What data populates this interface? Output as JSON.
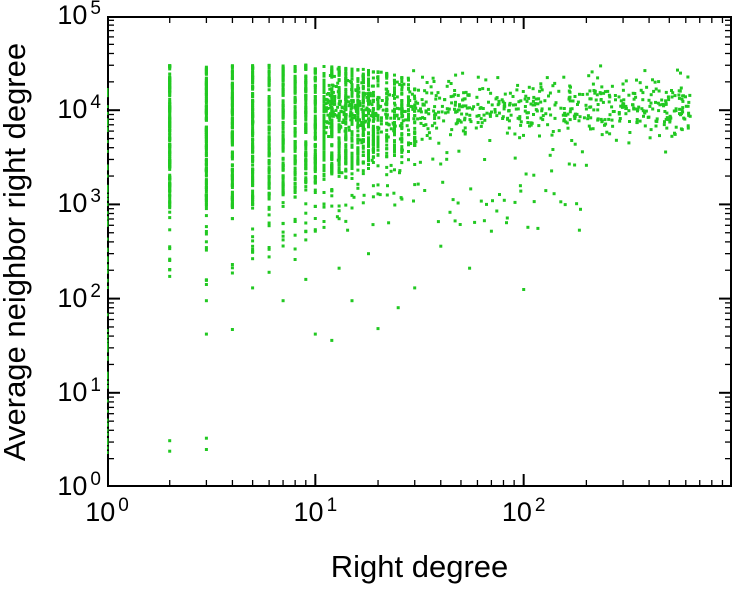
{
  "chart_data": {
    "type": "scatter",
    "title": "",
    "xlabel": "Right degree",
    "ylabel": "Average neighbor right degree",
    "xscale": "log",
    "yscale": "log",
    "xlim": [
      1,
      1000
    ],
    "ylim": [
      1,
      100000
    ],
    "grid": false,
    "legend": "none",
    "axis_color": "#000000",
    "marker_color": "#21c821",
    "marker_size": 3,
    "x_ticks": [
      {
        "value": 1,
        "base": "10",
        "exp": "0"
      },
      {
        "value": 10,
        "base": "10",
        "exp": "1"
      },
      {
        "value": 100,
        "base": "10",
        "exp": "2"
      }
    ],
    "y_ticks": [
      {
        "value": 1,
        "base": "10",
        "exp": "0"
      },
      {
        "value": 10,
        "base": "10",
        "exp": "1"
      },
      {
        "value": 100,
        "base": "10",
        "exp": "2"
      },
      {
        "value": 1000,
        "base": "10",
        "exp": "3"
      },
      {
        "value": 10000,
        "base": "10",
        "exp": "4"
      },
      {
        "value": 100000,
        "base": "10",
        "exp": "5"
      }
    ],
    "point_cloud": {
      "seed": 42,
      "left_axis_column": {
        "x": 1,
        "count": 70,
        "logy": [
          0.35,
          4.45
        ]
      },
      "stripes": {
        "fields": [
          "x",
          "solid_logy_min",
          "solid_logy_max",
          "solid_count",
          "tail_logy_min",
          "tail_count"
        ],
        "rows": [
          [
            2,
            2.95,
            4.48,
            150,
            2.2,
            10
          ],
          [
            3,
            2.95,
            4.48,
            140,
            2.1,
            10
          ],
          [
            4,
            3.0,
            4.48,
            130,
            2.2,
            9
          ],
          [
            5,
            3.0,
            4.48,
            120,
            2.3,
            8
          ],
          [
            6,
            3.05,
            4.48,
            112,
            2.4,
            8
          ],
          [
            7,
            3.1,
            4.48,
            105,
            2.5,
            7
          ],
          [
            8,
            3.1,
            4.48,
            100,
            2.5,
            7
          ],
          [
            9,
            3.15,
            4.48,
            95,
            2.6,
            6
          ],
          [
            10,
            3.2,
            4.47,
            90,
            2.6,
            6
          ],
          [
            11,
            3.25,
            4.47,
            85,
            2.7,
            5
          ],
          [
            12,
            3.3,
            4.46,
            80,
            2.7,
            5
          ],
          [
            13,
            3.3,
            4.46,
            75,
            2.8,
            4
          ],
          [
            14,
            3.35,
            4.45,
            70,
            2.8,
            4
          ],
          [
            15,
            3.35,
            4.45,
            66,
            2.9,
            4
          ],
          [
            16,
            3.4,
            4.44,
            62,
            2.9,
            3
          ],
          [
            17,
            3.4,
            4.44,
            58,
            3.0,
            3
          ],
          [
            18,
            3.45,
            4.43,
            54,
            3.0,
            3
          ],
          [
            19,
            3.45,
            4.43,
            50,
            3.0,
            3
          ],
          [
            20,
            3.5,
            4.42,
            46,
            3.1,
            3
          ],
          [
            22,
            3.5,
            4.4,
            40,
            3.1,
            2
          ],
          [
            24,
            3.55,
            4.38,
            36,
            3.1,
            2
          ],
          [
            26,
            3.55,
            4.36,
            32,
            3.2,
            2
          ],
          [
            28,
            3.6,
            4.34,
            28,
            3.2,
            2
          ],
          [
            30,
            3.6,
            4.32,
            26,
            3.2,
            2
          ]
        ]
      },
      "cloud": {
        "count": 720,
        "logx": [
          1.05,
          2.8
        ],
        "bias": 1.4,
        "logy_mean": 4.03,
        "logy_sd": 0.16,
        "logy_clip": [
          3.2,
          4.47
        ]
      },
      "mid_tail": {
        "count": 70,
        "logx": [
          1.05,
          2.3
        ],
        "logy": [
          2.7,
          3.6
        ]
      },
      "far_right": {
        "count": 28,
        "logx": [
          2.45,
          2.8
        ],
        "logy_mean": 3.95,
        "logy_sd": 0.12
      },
      "outliers": [
        [
          2,
          2.4
        ],
        [
          2,
          3.1
        ],
        [
          3,
          2.5
        ],
        [
          3,
          3.3
        ],
        [
          3,
          42
        ],
        [
          3,
          95
        ],
        [
          4,
          47
        ],
        [
          4,
          230
        ],
        [
          5,
          130
        ],
        [
          5,
          310
        ],
        [
          6,
          190
        ],
        [
          7,
          95
        ],
        [
          7,
          420
        ],
        [
          8,
          260
        ],
        [
          9,
          160
        ],
        [
          10,
          42
        ],
        [
          10,
          520
        ],
        [
          12,
          36
        ],
        [
          13,
          210
        ],
        [
          15,
          95
        ],
        [
          18,
          300
        ],
        [
          20,
          48
        ],
        [
          25,
          80
        ],
        [
          30,
          130
        ],
        [
          40,
          360
        ],
        [
          55,
          210
        ],
        [
          70,
          520
        ],
        [
          100,
          125
        ],
        [
          140,
          1300
        ],
        [
          200,
          2600
        ],
        [
          320,
          4500
        ],
        [
          480,
          3600
        ],
        [
          560,
          9200
        ],
        [
          620,
          8800
        ]
      ]
    }
  }
}
